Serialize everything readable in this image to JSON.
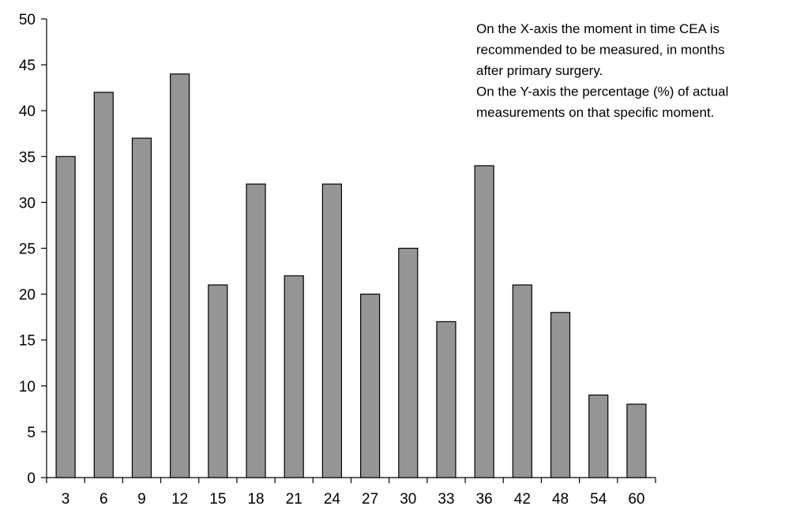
{
  "chart_data": {
    "type": "bar",
    "categories": [
      "3",
      "6",
      "9",
      "12",
      "15",
      "18",
      "21",
      "24",
      "27",
      "30",
      "33",
      "36",
      "42",
      "48",
      "54",
      "60"
    ],
    "values": [
      35,
      42,
      37,
      44,
      21,
      32,
      22,
      32,
      20,
      25,
      17,
      34,
      21,
      18,
      9,
      8
    ],
    "ylim": [
      0,
      50
    ],
    "yticks": [
      0,
      5,
      10,
      15,
      20,
      25,
      30,
      35,
      40,
      45,
      50
    ],
    "grid": false,
    "colors": {
      "bar_fill": "#959595",
      "bar_stroke": "#000000",
      "axis": "#000000"
    },
    "annotation": [
      "On the X-axis the moment in time CEA is",
      "recommended to be measured, in months",
      "after primary surgery.",
      "On the Y-axis the percentage (%) of actual",
      "measurements on that specific moment."
    ]
  }
}
